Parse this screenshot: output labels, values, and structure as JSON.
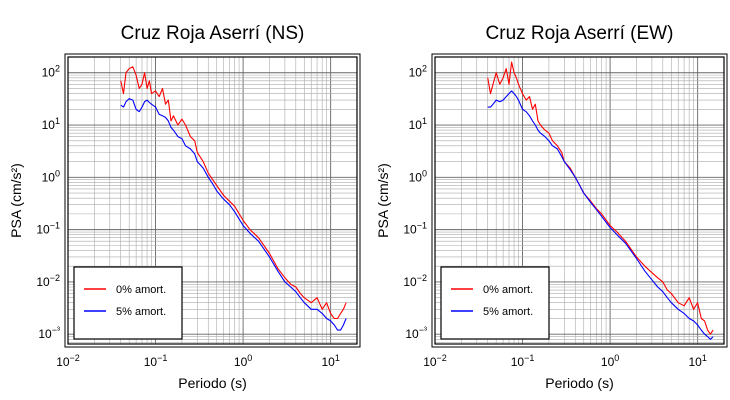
{
  "chart_data": [
    {
      "type": "line",
      "title": "Cruz Roja Aserrí (NS)",
      "xlabel": "Periodo (s)",
      "ylabel": "PSA (cm/s²)",
      "x_scale": "log",
      "y_scale": "log",
      "xlim": [
        0.01,
        20
      ],
      "ylim": [
        0.00065,
        200
      ],
      "x_ticks": [
        "10⁻²",
        "10⁻¹",
        "10⁰",
        "10¹"
      ],
      "y_ticks": [
        "10⁻³",
        "10⁻²",
        "10⁻¹",
        "10⁰",
        "10¹",
        "10²"
      ],
      "grid": true,
      "legend_position": "bottom-left",
      "series": [
        {
          "name": "0% amort.",
          "color": "#ff0000",
          "x": [
            0.04,
            0.043,
            0.046,
            0.05,
            0.055,
            0.06,
            0.065,
            0.07,
            0.075,
            0.08,
            0.085,
            0.09,
            0.1,
            0.11,
            0.12,
            0.13,
            0.14,
            0.15,
            0.16,
            0.18,
            0.2,
            0.22,
            0.25,
            0.28,
            0.3,
            0.35,
            0.4,
            0.45,
            0.5,
            0.6,
            0.7,
            0.8,
            1.0,
            1.2,
            1.5,
            2.0,
            2.5,
            3.0,
            3.5,
            4.0,
            4.5,
            5.0,
            6.0,
            7.0,
            8.0,
            9.0,
            10.0,
            11.0,
            12.0,
            13.0,
            14.0,
            15.0
          ],
          "y": [
            70,
            40,
            100,
            120,
            130,
            90,
            50,
            60,
            100,
            50,
            70,
            40,
            45,
            35,
            50,
            25,
            30,
            12,
            15,
            10,
            13,
            10,
            6,
            5,
            3,
            2,
            1.2,
            0.9,
            0.7,
            0.45,
            0.35,
            0.28,
            0.15,
            0.1,
            0.07,
            0.035,
            0.018,
            0.012,
            0.009,
            0.008,
            0.006,
            0.005,
            0.004,
            0.005,
            0.003,
            0.004,
            0.0025,
            0.002,
            0.002,
            0.0025,
            0.003,
            0.004
          ]
        },
        {
          "name": "5% amort.",
          "color": "#0000ff",
          "x": [
            0.04,
            0.043,
            0.046,
            0.05,
            0.055,
            0.06,
            0.065,
            0.07,
            0.075,
            0.08,
            0.085,
            0.09,
            0.1,
            0.11,
            0.12,
            0.13,
            0.14,
            0.15,
            0.16,
            0.18,
            0.2,
            0.22,
            0.25,
            0.28,
            0.3,
            0.35,
            0.4,
            0.45,
            0.5,
            0.6,
            0.7,
            0.8,
            1.0,
            1.2,
            1.5,
            2.0,
            2.5,
            3.0,
            3.5,
            4.0,
            4.5,
            5.0,
            6.0,
            7.0,
            8.0,
            9.0,
            10.0,
            11.0,
            12.0,
            13.0,
            14.0,
            15.0
          ],
          "y": [
            24,
            22,
            28,
            32,
            30,
            20,
            18,
            22,
            28,
            30,
            27,
            25,
            22,
            16,
            15,
            14,
            12,
            9,
            8,
            6,
            5.5,
            4,
            3.5,
            2.8,
            2,
            1.5,
            1,
            0.75,
            0.55,
            0.38,
            0.3,
            0.22,
            0.12,
            0.085,
            0.06,
            0.03,
            0.016,
            0.01,
            0.008,
            0.0065,
            0.005,
            0.004,
            0.003,
            0.003,
            0.0025,
            0.002,
            0.0018,
            0.0015,
            0.0012,
            0.0012,
            0.0015,
            0.002
          ]
        }
      ]
    },
    {
      "type": "line",
      "title": "Cruz Roja Aserrí (EW)",
      "xlabel": "Periodo (s)",
      "ylabel": "PSA (cm/s²)",
      "x_scale": "log",
      "y_scale": "log",
      "xlim": [
        0.01,
        20
      ],
      "ylim": [
        0.00065,
        200
      ],
      "x_ticks": [
        "10⁻²",
        "10⁻¹",
        "10⁰",
        "10¹"
      ],
      "y_ticks": [
        "10⁻³",
        "10⁻²",
        "10⁻¹",
        "10⁰",
        "10¹",
        "10²"
      ],
      "grid": true,
      "legend_position": "bottom-left",
      "series": [
        {
          "name": "0% amort.",
          "color": "#ff0000",
          "x": [
            0.04,
            0.043,
            0.046,
            0.05,
            0.055,
            0.06,
            0.065,
            0.07,
            0.075,
            0.08,
            0.085,
            0.09,
            0.1,
            0.11,
            0.12,
            0.13,
            0.14,
            0.15,
            0.16,
            0.18,
            0.2,
            0.22,
            0.25,
            0.28,
            0.3,
            0.35,
            0.4,
            0.45,
            0.5,
            0.6,
            0.7,
            0.8,
            1.0,
            1.2,
            1.5,
            2.0,
            2.5,
            3.0,
            3.5,
            4.0,
            4.5,
            5.0,
            6.0,
            7.0,
            8.0,
            9.0,
            10.0,
            11.0,
            12.0,
            13.0,
            14.0,
            15.0
          ],
          "y": [
            80,
            40,
            60,
            100,
            60,
            80,
            120,
            60,
            160,
            100,
            80,
            60,
            40,
            30,
            35,
            20,
            25,
            12,
            10,
            8,
            7,
            5,
            4,
            3,
            2,
            1.5,
            1,
            0.7,
            0.5,
            0.35,
            0.25,
            0.2,
            0.12,
            0.09,
            0.06,
            0.03,
            0.02,
            0.015,
            0.012,
            0.01,
            0.007,
            0.006,
            0.004,
            0.0035,
            0.005,
            0.003,
            0.004,
            0.002,
            0.0018,
            0.0012,
            0.001,
            0.0012
          ]
        },
        {
          "name": "5% amort.",
          "color": "#0000ff",
          "x": [
            0.04,
            0.043,
            0.046,
            0.05,
            0.055,
            0.06,
            0.065,
            0.07,
            0.075,
            0.08,
            0.085,
            0.09,
            0.1,
            0.11,
            0.12,
            0.13,
            0.14,
            0.15,
            0.16,
            0.18,
            0.2,
            0.22,
            0.25,
            0.28,
            0.3,
            0.35,
            0.4,
            0.45,
            0.5,
            0.6,
            0.7,
            0.8,
            1.0,
            1.2,
            1.5,
            2.0,
            2.5,
            3.0,
            3.5,
            4.0,
            4.5,
            5.0,
            6.0,
            7.0,
            8.0,
            9.0,
            10.0,
            11.0,
            12.0,
            13.0,
            14.0,
            15.0
          ],
          "y": [
            22,
            22,
            25,
            30,
            28,
            30,
            35,
            40,
            45,
            40,
            35,
            30,
            20,
            18,
            15,
            12,
            10,
            8,
            7,
            6,
            5,
            4,
            3.5,
            2.5,
            2,
            1.4,
            1,
            0.7,
            0.5,
            0.33,
            0.24,
            0.18,
            0.11,
            0.08,
            0.055,
            0.028,
            0.016,
            0.011,
            0.008,
            0.0065,
            0.005,
            0.004,
            0.003,
            0.0025,
            0.002,
            0.0018,
            0.0015,
            0.0012,
            0.001,
            0.0009,
            0.0008,
            0.0009
          ]
        }
      ]
    }
  ]
}
